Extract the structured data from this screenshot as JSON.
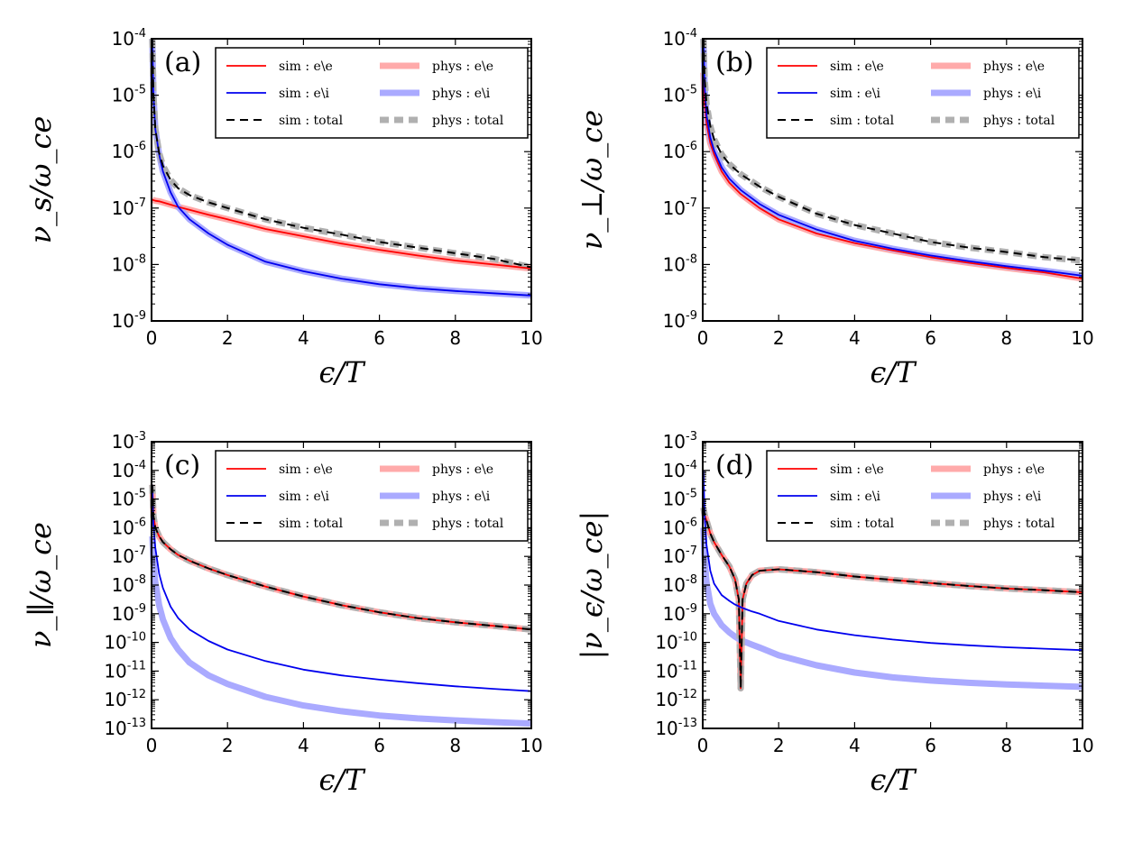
{
  "colors": {
    "sim_ee": "#ff0000",
    "sim_ei": "#0000ee",
    "sim_total": "#000000",
    "phys_ee": "#ffaaaa",
    "phys_ei": "#aaaaff",
    "phys_total": "#b0b0b0"
  },
  "legend": [
    {
      "key": "sim_ee",
      "label": "sim : e\\e",
      "style": "sim"
    },
    {
      "key": "phys_ee",
      "label": "phys : e\\e",
      "style": "phys"
    },
    {
      "key": "sim_ei",
      "label": "sim : e\\i",
      "style": "sim"
    },
    {
      "key": "phys_ei",
      "label": "phys : e\\i",
      "style": "phys"
    },
    {
      "key": "sim_total",
      "label": "sim : total",
      "style": "sim-dash"
    },
    {
      "key": "phys_total",
      "label": "phys : total",
      "style": "phys-dash"
    }
  ],
  "chart_data": [
    {
      "type": "line",
      "panel_label": "(a)",
      "xlabel": "ϵ/T",
      "ylabel": "ν_s/ω_ce",
      "x": [
        0.02,
        0.05,
        0.1,
        0.2,
        0.3,
        0.5,
        0.7,
        1.0,
        1.5,
        2,
        3,
        4,
        5,
        6,
        7,
        8,
        9,
        10
      ],
      "xlim": [
        0,
        10
      ],
      "xticks": [
        "0",
        "2",
        "4",
        "6",
        "8",
        "10"
      ],
      "ylim_exp": [
        -9,
        -4
      ],
      "ytick_exps": [
        "-9",
        "-8",
        "-7",
        "-6",
        "-5",
        "-4"
      ],
      "series": [
        {
          "name": "sim : e\\e",
          "key": "sim_ee",
          "log10_values": [
            -6.85,
            -6.86,
            -6.87,
            -6.88,
            -6.9,
            -6.94,
            -6.98,
            -7.03,
            -7.12,
            -7.2,
            -7.37,
            -7.5,
            -7.63,
            -7.74,
            -7.84,
            -7.93,
            -8.0,
            -8.07
          ]
        },
        {
          "name": "sim : e\\i",
          "key": "sim_ei",
          "log10_values": [
            -4.0,
            -5.0,
            -5.6,
            -6.05,
            -6.35,
            -6.72,
            -6.98,
            -7.2,
            -7.45,
            -7.65,
            -7.95,
            -8.12,
            -8.25,
            -8.35,
            -8.42,
            -8.47,
            -8.51,
            -8.55
          ]
        },
        {
          "name": "sim : total",
          "key": "sim_total",
          "log10_values": [
            -4.0,
            -5.0,
            -5.6,
            -6.02,
            -6.25,
            -6.5,
            -6.65,
            -6.77,
            -6.9,
            -7.0,
            -7.2,
            -7.35,
            -7.47,
            -7.6,
            -7.7,
            -7.8,
            -7.9,
            -8.05
          ]
        },
        {
          "name": "phys : e\\e",
          "key": "phys_ee",
          "log10_values": [
            -6.85,
            -6.86,
            -6.87,
            -6.88,
            -6.9,
            -6.94,
            -6.98,
            -7.03,
            -7.12,
            -7.2,
            -7.37,
            -7.5,
            -7.63,
            -7.74,
            -7.84,
            -7.93,
            -8.0,
            -8.07
          ]
        },
        {
          "name": "phys : e\\i",
          "key": "phys_ei",
          "log10_values": [
            -4.0,
            -5.0,
            -5.6,
            -6.05,
            -6.35,
            -6.72,
            -6.98,
            -7.2,
            -7.45,
            -7.65,
            -7.95,
            -8.12,
            -8.25,
            -8.35,
            -8.42,
            -8.47,
            -8.51,
            -8.55
          ]
        },
        {
          "name": "phys : total",
          "key": "phys_total",
          "log10_values": [
            -4.0,
            -5.0,
            -5.6,
            -6.02,
            -6.25,
            -6.5,
            -6.65,
            -6.77,
            -6.9,
            -7.0,
            -7.2,
            -7.35,
            -7.47,
            -7.6,
            -7.7,
            -7.8,
            -7.9,
            -8.05
          ]
        }
      ]
    },
    {
      "type": "line",
      "panel_label": "(b)",
      "xlabel": "ϵ/T",
      "ylabel": "ν_⊥/ω_ce",
      "x": [
        0.02,
        0.05,
        0.1,
        0.2,
        0.3,
        0.5,
        0.7,
        1.0,
        1.5,
        2,
        3,
        4,
        5,
        6,
        7,
        8,
        9,
        10
      ],
      "xlim": [
        0,
        10
      ],
      "xticks": [
        "0",
        "2",
        "4",
        "6",
        "8",
        "10"
      ],
      "ylim_exp": [
        -9,
        -4
      ],
      "ytick_exps": [
        "-9",
        "-8",
        "-7",
        "-6",
        "-5",
        "-4"
      ],
      "series": [
        {
          "name": "sim : e\\e",
          "key": "sim_ee",
          "log10_values": [
            -4.6,
            -5.15,
            -5.5,
            -5.85,
            -6.05,
            -6.35,
            -6.55,
            -6.75,
            -7.0,
            -7.2,
            -7.45,
            -7.62,
            -7.75,
            -7.87,
            -7.97,
            -8.06,
            -8.14,
            -8.25
          ]
        },
        {
          "name": "sim : e\\i",
          "key": "sim_ei",
          "log10_values": [
            -4.0,
            -4.85,
            -5.35,
            -5.75,
            -5.98,
            -6.28,
            -6.48,
            -6.68,
            -6.93,
            -7.12,
            -7.38,
            -7.58,
            -7.72,
            -7.84,
            -7.94,
            -8.03,
            -8.11,
            -8.2
          ]
        },
        {
          "name": "sim : total",
          "key": "sim_total",
          "log10_values": [
            -4.0,
            -4.7,
            -5.15,
            -5.55,
            -5.78,
            -6.05,
            -6.22,
            -6.4,
            -6.62,
            -6.8,
            -7.1,
            -7.3,
            -7.45,
            -7.6,
            -7.7,
            -7.78,
            -7.87,
            -7.93
          ]
        },
        {
          "name": "phys : e\\e",
          "key": "phys_ee",
          "log10_values": [
            -4.6,
            -5.15,
            -5.5,
            -5.85,
            -6.05,
            -6.35,
            -6.55,
            -6.75,
            -7.0,
            -7.2,
            -7.45,
            -7.62,
            -7.75,
            -7.87,
            -7.97,
            -8.06,
            -8.14,
            -8.25
          ]
        },
        {
          "name": "phys : e\\i",
          "key": "phys_ei",
          "log10_values": [
            -4.0,
            -4.85,
            -5.35,
            -5.75,
            -5.98,
            -6.28,
            -6.48,
            -6.68,
            -6.93,
            -7.12,
            -7.38,
            -7.58,
            -7.72,
            -7.84,
            -7.94,
            -8.03,
            -8.11,
            -8.2
          ]
        },
        {
          "name": "phys : total",
          "key": "phys_total",
          "log10_values": [
            -4.0,
            -4.7,
            -5.15,
            -5.55,
            -5.78,
            -6.05,
            -6.22,
            -6.4,
            -6.62,
            -6.8,
            -7.1,
            -7.3,
            -7.45,
            -7.6,
            -7.7,
            -7.78,
            -7.87,
            -7.93
          ]
        }
      ]
    },
    {
      "type": "line",
      "panel_label": "(c)",
      "xlabel": "ϵ/T",
      "ylabel": "ν_∥/ω_ce",
      "x": [
        0.02,
        0.05,
        0.1,
        0.2,
        0.3,
        0.5,
        0.7,
        1.0,
        1.5,
        2,
        3,
        4,
        5,
        6,
        7,
        8,
        9,
        10
      ],
      "xlim": [
        0,
        10
      ],
      "xticks": [
        "0",
        "2",
        "4",
        "6",
        "8",
        "10"
      ],
      "ylim_exp": [
        -13,
        -3
      ],
      "ytick_exps": [
        "-13",
        "-12",
        "-11",
        "-10",
        "-9",
        "-8",
        "-7",
        "-6",
        "-5",
        "-4",
        "-3"
      ],
      "series": [
        {
          "name": "sim : e\\e",
          "key": "sim_ee",
          "log10_values": [
            -4.5,
            -5.6,
            -6.0,
            -6.3,
            -6.5,
            -6.75,
            -6.95,
            -7.15,
            -7.42,
            -7.65,
            -8.05,
            -8.4,
            -8.7,
            -8.95,
            -9.15,
            -9.3,
            -9.42,
            -9.55
          ]
        },
        {
          "name": "sim : e\\i",
          "key": "sim_ei",
          "log10_values": [
            -4.5,
            -5.9,
            -6.7,
            -7.6,
            -8.1,
            -8.75,
            -9.15,
            -9.55,
            -9.95,
            -10.25,
            -10.65,
            -10.95,
            -11.15,
            -11.3,
            -11.42,
            -11.53,
            -11.62,
            -11.7
          ]
        },
        {
          "name": "sim : total",
          "key": "sim_total",
          "log10_values": [
            -4.5,
            -5.6,
            -6.0,
            -6.3,
            -6.5,
            -6.75,
            -6.95,
            -7.15,
            -7.42,
            -7.65,
            -8.05,
            -8.4,
            -8.7,
            -8.95,
            -9.15,
            -9.3,
            -9.42,
            -9.55
          ]
        },
        {
          "name": "phys : e\\e",
          "key": "phys_ee",
          "log10_values": [
            -4.5,
            -5.6,
            -6.0,
            -6.3,
            -6.5,
            -6.75,
            -6.95,
            -7.15,
            -7.42,
            -7.65,
            -8.05,
            -8.4,
            -8.7,
            -8.95,
            -9.15,
            -9.3,
            -9.42,
            -9.55
          ]
        },
        {
          "name": "phys : e\\i",
          "key": "phys_ei",
          "log10_values": [
            -6.3,
            -7.2,
            -7.9,
            -8.7,
            -9.2,
            -9.85,
            -10.25,
            -10.7,
            -11.15,
            -11.45,
            -11.9,
            -12.2,
            -12.4,
            -12.55,
            -12.65,
            -12.72,
            -12.78,
            -12.83
          ]
        },
        {
          "name": "phys : total",
          "key": "phys_total",
          "log10_values": [
            -4.5,
            -5.6,
            -6.0,
            -6.3,
            -6.5,
            -6.75,
            -6.95,
            -7.15,
            -7.42,
            -7.65,
            -8.05,
            -8.4,
            -8.7,
            -8.95,
            -9.15,
            -9.3,
            -9.42,
            -9.55
          ]
        }
      ]
    },
    {
      "type": "line",
      "panel_label": "(d)",
      "xlabel": "ϵ/T",
      "ylabel": "|ν_ϵ/ω_ce|",
      "x": [
        0.02,
        0.05,
        0.1,
        0.2,
        0.3,
        0.5,
        0.7,
        0.85,
        0.95,
        1.0,
        1.05,
        1.15,
        1.3,
        1.5,
        2,
        3,
        4,
        5,
        6,
        7,
        8,
        9,
        10
      ],
      "xlim": [
        0,
        10
      ],
      "xticks": [
        "0",
        "2",
        "4",
        "6",
        "8",
        "10"
      ],
      "ylim_exp": [
        -13,
        -3
      ],
      "ytick_exps": [
        "-13",
        "-12",
        "-11",
        "-10",
        "-9",
        "-8",
        "-7",
        "-6",
        "-5",
        "-4",
        "-3"
      ],
      "series": [
        {
          "name": "sim : e\\e",
          "key": "sim_ee",
          "log10_values": [
            -5.3,
            -5.55,
            -5.75,
            -6.2,
            -6.5,
            -6.95,
            -7.35,
            -7.8,
            -8.5,
            -11.6,
            -8.5,
            -7.95,
            -7.65,
            -7.5,
            -7.45,
            -7.55,
            -7.7,
            -7.82,
            -7.93,
            -8.03,
            -8.12,
            -8.18,
            -8.25
          ]
        },
        {
          "name": "sim : e\\i",
          "key": "sim_ei",
          "log10_values": [
            -4.0,
            -5.6,
            -6.6,
            -7.5,
            -7.95,
            -8.35,
            -8.55,
            -8.68,
            -8.74,
            -8.77,
            -8.8,
            -8.85,
            -8.92,
            -9.0,
            -9.25,
            -9.55,
            -9.75,
            -9.9,
            -10.02,
            -10.1,
            -10.17,
            -10.22,
            -10.27
          ]
        },
        {
          "name": "sim : total",
          "key": "sim_total",
          "log10_values": [
            -5.3,
            -5.55,
            -5.75,
            -6.2,
            -6.5,
            -6.95,
            -7.35,
            -7.8,
            -8.5,
            -11.6,
            -8.5,
            -7.95,
            -7.65,
            -7.5,
            -7.45,
            -7.55,
            -7.7,
            -7.82,
            -7.93,
            -8.03,
            -8.12,
            -8.18,
            -8.25
          ]
        },
        {
          "name": "phys : e\\e",
          "key": "phys_ee",
          "log10_values": [
            -5.3,
            -5.55,
            -5.75,
            -6.2,
            -6.5,
            -6.95,
            -7.35,
            -7.8,
            -8.5,
            -11.6,
            -8.5,
            -7.95,
            -7.65,
            -7.5,
            -7.45,
            -7.55,
            -7.7,
            -7.82,
            -7.93,
            -8.03,
            -8.12,
            -8.18,
            -8.25
          ]
        },
        {
          "name": "phys : e\\i",
          "key": "phys_ei",
          "log10_values": [
            -6.0,
            -7.1,
            -7.9,
            -8.65,
            -9.0,
            -9.4,
            -9.65,
            -9.8,
            -9.88,
            -9.92,
            -9.95,
            -10.0,
            -10.08,
            -10.18,
            -10.45,
            -10.8,
            -11.05,
            -11.22,
            -11.33,
            -11.41,
            -11.47,
            -11.51,
            -11.55
          ]
        },
        {
          "name": "phys : total",
          "key": "phys_total",
          "log10_values": [
            -5.3,
            -5.55,
            -5.75,
            -6.2,
            -6.5,
            -6.95,
            -7.35,
            -7.8,
            -8.5,
            -11.6,
            -8.5,
            -7.95,
            -7.65,
            -7.5,
            -7.45,
            -7.55,
            -7.7,
            -7.82,
            -7.93,
            -8.03,
            -8.12,
            -8.18,
            -8.25
          ]
        }
      ]
    }
  ]
}
